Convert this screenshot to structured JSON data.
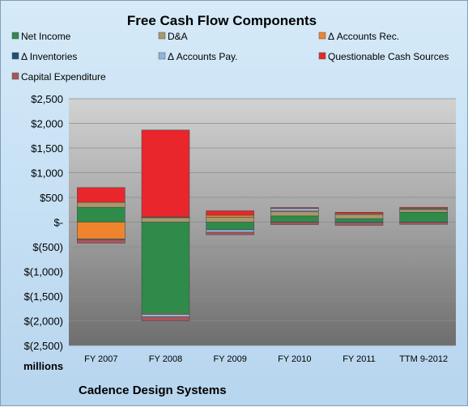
{
  "chart_data": {
    "type": "bar",
    "stacked": true,
    "title": "Free Cash Flow Components",
    "company": "Cadence Design Systems",
    "units_label": "millions",
    "categories": [
      "FY 2007",
      "FY 2008",
      "FY 2009",
      "FY 2010",
      "FY 2011",
      "TTM 9-2012"
    ],
    "ylim": [
      -2500,
      2500
    ],
    "y_ticks": [
      2500,
      2000,
      1500,
      1000,
      500,
      0,
      -500,
      -1000,
      -1500,
      -2000,
      -2500
    ],
    "y_tick_labels": [
      "$2,500",
      "$2,000",
      "$1,500",
      "$1,000",
      "$500",
      "$-",
      "$(500)",
      "$(1,000)",
      "$(1,500)",
      "$(2,000)",
      "$(2,500)"
    ],
    "legend_position": "top",
    "grid": true,
    "series": [
      {
        "name": "Net Income",
        "color": "#2e8b4a",
        "values": [
          300,
          -1850,
          -150,
          125,
          70,
          200
        ]
      },
      {
        "name": "D&A",
        "color": "#a8986a",
        "values": [
          100,
          100,
          100,
          90,
          90,
          60
        ]
      },
      {
        "name": "Δ Accounts Rec.",
        "color": "#f0842c",
        "values": [
          -340,
          -20,
          40,
          10,
          10,
          10
        ]
      },
      {
        "name": "Δ Inventories",
        "color": "#1f4e79",
        "values": [
          -5,
          5,
          -5,
          -5,
          -5,
          -5
        ]
      },
      {
        "name": "Δ Accounts Pay.",
        "color": "#8fb4d9",
        "values": [
          -10,
          -50,
          -50,
          50,
          -15,
          10
        ]
      },
      {
        "name": "Questionable Cash Sources",
        "color": "#e8262b",
        "values": [
          300,
          1760,
          90,
          20,
          30,
          20
        ]
      },
      {
        "name": "Capital Expenditure",
        "color": "#a9545c",
        "values": [
          -70,
          -80,
          -50,
          -45,
          -45,
          -40
        ]
      }
    ]
  }
}
